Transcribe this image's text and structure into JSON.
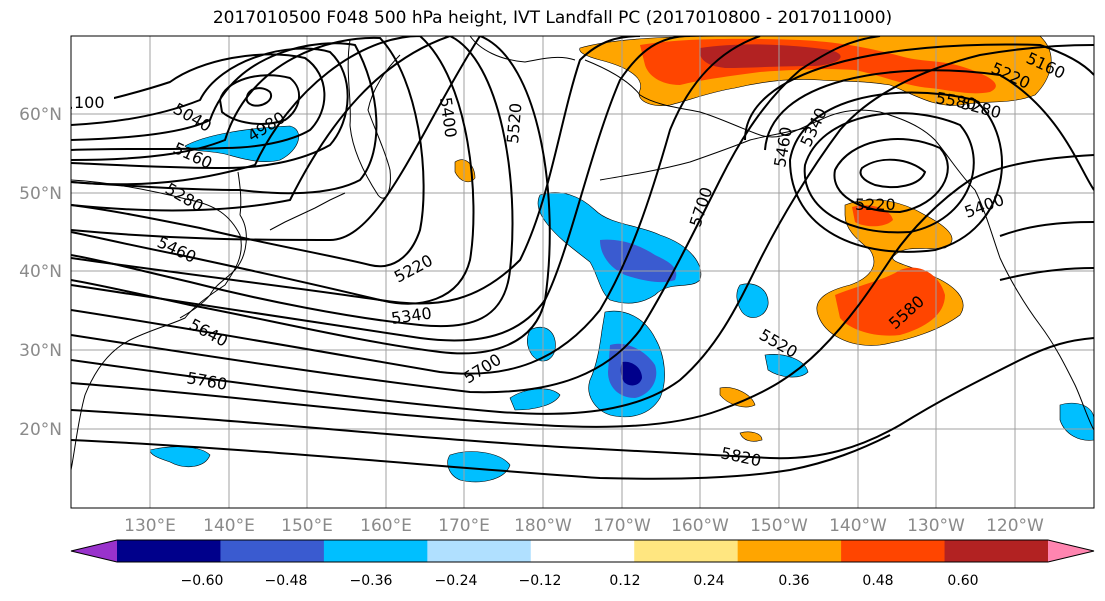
{
  "title": "2017010500 F048 500 hPa height, IVT Landfall PC (2017010800 - 2017011000)",
  "lat_labels": [
    "60°N",
    "50°N",
    "40°N",
    "30°N",
    "20°N"
  ],
  "lon_labels": [
    "130°E",
    "140°E",
    "150°E",
    "160°E",
    "170°E",
    "180°W",
    "170°W",
    "160°W",
    "150°W",
    "140°W",
    "130°W",
    "120°W"
  ],
  "contour_labels": [
    {
      "id": "c100",
      "text": "100"
    },
    {
      "id": "c5040",
      "text": "5040"
    },
    {
      "id": "c4980",
      "text": "4980"
    },
    {
      "id": "c5160a",
      "text": "5160"
    },
    {
      "id": "c5280",
      "text": "5280"
    },
    {
      "id": "c5460",
      "text": "5460"
    },
    {
      "id": "c5640",
      "text": "5640"
    },
    {
      "id": "c5760",
      "text": "5760"
    },
    {
      "id": "c5400",
      "text": "5400"
    },
    {
      "id": "c5520a",
      "text": "5520"
    },
    {
      "id": "c5220a",
      "text": "5220"
    },
    {
      "id": "c5340",
      "text": "5340"
    },
    {
      "id": "c5700a",
      "text": "5700"
    },
    {
      "id": "c5700b",
      "text": "5700"
    },
    {
      "id": "c5460b",
      "text": "5460"
    },
    {
      "id": "c5340b",
      "text": "5340"
    },
    {
      "id": "c5220b",
      "text": "5220"
    },
    {
      "id": "c5520b",
      "text": "5520"
    },
    {
      "id": "c5580",
      "text": "5580"
    },
    {
      "id": "c5820",
      "text": "5820"
    },
    {
      "id": "c5160b",
      "text": "5160"
    },
    {
      "id": "c5220c",
      "text": "5220"
    },
    {
      "id": "c5280b",
      "text": "5280"
    },
    {
      "id": "c5580b",
      "text": "5580"
    },
    {
      "id": "c5400b",
      "text": "5400"
    }
  ],
  "colorbar": {
    "colors": [
      "#9932cc",
      "#00008b",
      "#3a5bd0",
      "#00bfff",
      "#b0e0ff",
      "#ffffff",
      "#ffe680",
      "#ffa500",
      "#ff4500",
      "#b22222",
      "#ff85b0"
    ],
    "ticks": [
      "−0.60",
      "−0.48",
      "−0.36",
      "−0.24",
      "−0.12",
      "0.12",
      "0.24",
      "0.36",
      "0.48",
      "0.60"
    ]
  }
}
